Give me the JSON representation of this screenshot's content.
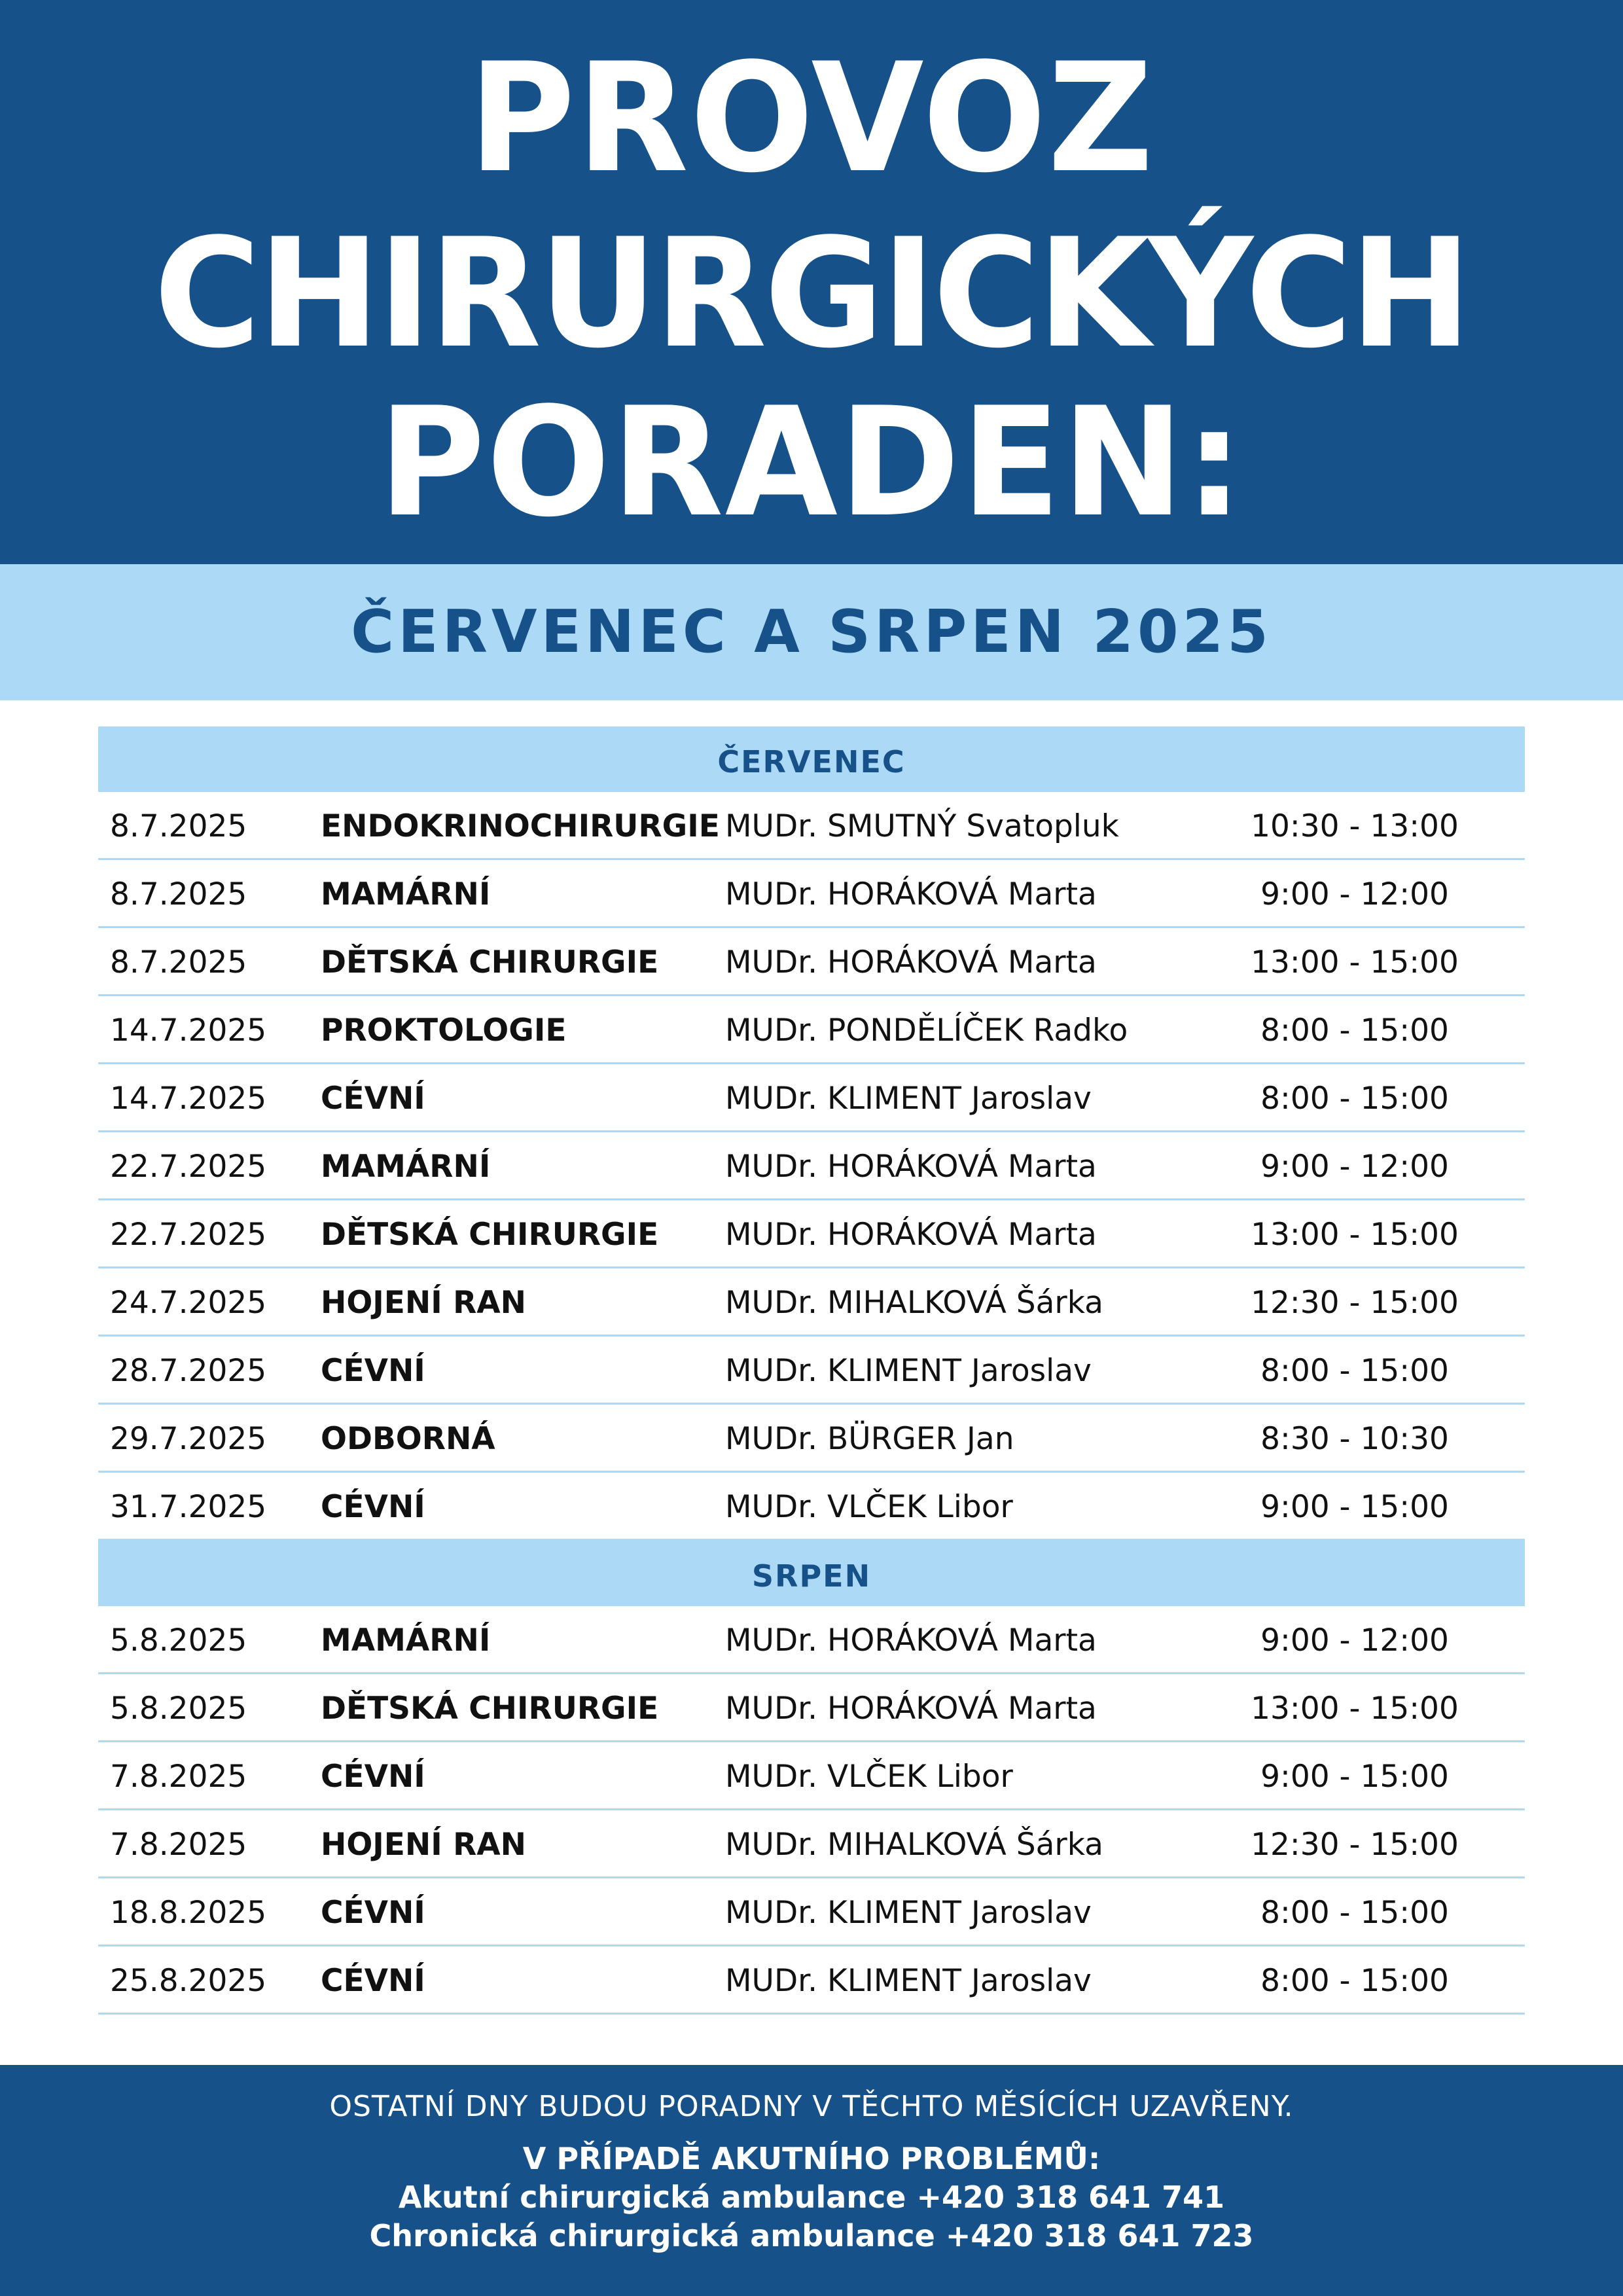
{
  "title": {
    "line1": "PROVOZ",
    "line2": "CHIRURGICKÝCH",
    "line3": "PORADEN:"
  },
  "subtitle": "ČERVENEC A SRPEN 2025",
  "sections": [
    {
      "name": "ČERVENEC",
      "rows": [
        {
          "date": "8.7.2025",
          "specialty": "ENDOKRINOCHIRURGIE",
          "doctor": "MUDr. SMUTNÝ Svatopluk",
          "time": "10:30 - 13:00"
        },
        {
          "date": "8.7.2025",
          "specialty": "MAMÁRNÍ",
          "doctor": "MUDr. HORÁKOVÁ Marta",
          "time": "9:00 - 12:00"
        },
        {
          "date": "8.7.2025",
          "specialty": "DĚTSKÁ CHIRURGIE",
          "doctor": "MUDr. HORÁKOVÁ Marta",
          "time": "13:00 - 15:00"
        },
        {
          "date": "14.7.2025",
          "specialty": "PROKTOLOGIE",
          "doctor": "MUDr. PONDĚLÍČEK Radko",
          "time": "8:00 - 15:00"
        },
        {
          "date": "14.7.2025",
          "specialty": "CÉVNÍ",
          "doctor": "MUDr. KLIMENT Jaroslav",
          "time": "8:00 - 15:00"
        },
        {
          "date": "22.7.2025",
          "specialty": "MAMÁRNÍ",
          "doctor": "MUDr. HORÁKOVÁ Marta",
          "time": "9:00 - 12:00"
        },
        {
          "date": "22.7.2025",
          "specialty": "DĚTSKÁ CHIRURGIE",
          "doctor": "MUDr. HORÁKOVÁ Marta",
          "time": "13:00 - 15:00"
        },
        {
          "date": "24.7.2025",
          "specialty": "HOJENÍ RAN",
          "doctor": "MUDr. MIHALKOVÁ Šárka",
          "time": "12:30 - 15:00"
        },
        {
          "date": "28.7.2025",
          "specialty": "CÉVNÍ",
          "doctor": "MUDr. KLIMENT Jaroslav",
          "time": "8:00 - 15:00"
        },
        {
          "date": "29.7.2025",
          "specialty": "ODBORNÁ",
          "doctor": " MUDr. BÜRGER Jan",
          "time": "8:30 - 10:30"
        },
        {
          "date": "31.7.2025",
          "specialty": "CÉVNÍ",
          "doctor": "MUDr. VLČEK Libor",
          "time": "9:00 - 15:00"
        }
      ]
    },
    {
      "name": "SRPEN",
      "rows": [
        {
          "date": "5.8.2025",
          "specialty": "MAMÁRNÍ",
          "doctor": "MUDr. HORÁKOVÁ Marta",
          "time": "9:00 - 12:00"
        },
        {
          "date": "5.8.2025",
          "specialty": "DĚTSKÁ CHIRURGIE",
          "doctor": "MUDr. HORÁKOVÁ Marta",
          "time": "13:00 - 15:00"
        },
        {
          "date": "7.8.2025",
          "specialty": "CÉVNÍ",
          "doctor": "MUDr. VLČEK Libor",
          "time": "9:00 - 15:00"
        },
        {
          "date": "7.8.2025",
          "specialty": "HOJENÍ RAN",
          "doctor": "MUDr. MIHALKOVÁ Šárka",
          "time": "12:30 - 15:00"
        },
        {
          "date": "18.8.2025",
          "specialty": "CÉVNÍ",
          "doctor": "MUDr. KLIMENT Jaroslav",
          "time": "8:00 - 15:00"
        },
        {
          "date": "25.8.2025",
          "specialty": "CÉVNÍ",
          "doctor": "MUDr. KLIMENT Jaroslav",
          "time": "8:00 - 15:00"
        }
      ]
    }
  ],
  "footer": {
    "note": "OSTATNÍ DNY BUDOU PORADNY V TĚCHTO MĚSÍCÍCH UZAVŘENY.",
    "alert": "V PŘÍPADĚ AKUTNÍHO PROBLÉMŮ:",
    "line1": "Akutní chirurgická ambulance +420 318 641 741",
    "line2": "Chronická chirurgická ambulance +420 318 641 723"
  },
  "colors": {
    "primary": "#175189",
    "light": "#abd9f6",
    "background": "#ffffff"
  }
}
